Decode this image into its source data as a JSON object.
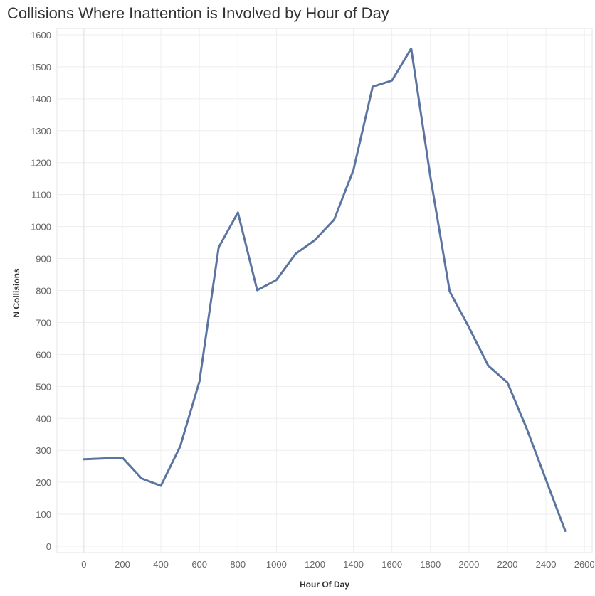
{
  "title": "Collisions Where Inattention is Involved by Hour of Day",
  "colors": {
    "line": "#5b74a0",
    "grid": "#eeeeee",
    "tick_text": "#666666"
  },
  "chart_data": {
    "type": "line",
    "title": "Collisions Where Inattention is Involved by Hour of Day",
    "xlabel": "Hour Of Day",
    "ylabel": "N Collisions",
    "xlim": [
      -140,
      2640
    ],
    "ylim": [
      -20,
      1620
    ],
    "xticks": [
      0,
      200,
      400,
      600,
      800,
      1000,
      1200,
      1400,
      1600,
      1800,
      2000,
      2200,
      2400,
      2600
    ],
    "yticks": [
      0,
      100,
      200,
      300,
      400,
      500,
      600,
      700,
      800,
      900,
      1000,
      1100,
      1200,
      1300,
      1400,
      1500,
      1600
    ],
    "grid": true,
    "series": [
      {
        "x": [
          0,
          200,
          300,
          400,
          500,
          600,
          700,
          800,
          900,
          1000,
          1100,
          1200,
          1300,
          1400,
          1500,
          1600,
          1700,
          1800,
          1900,
          2000,
          2100,
          2200,
          2300,
          2400,
          2500
        ],
        "values": [
          272,
          277,
          212,
          189,
          312,
          515,
          935,
          1044,
          801,
          833,
          915,
          958,
          1022,
          1177,
          1438,
          1457,
          1557,
          1155,
          797,
          685,
          565,
          512,
          368,
          208,
          48
        ]
      }
    ]
  }
}
